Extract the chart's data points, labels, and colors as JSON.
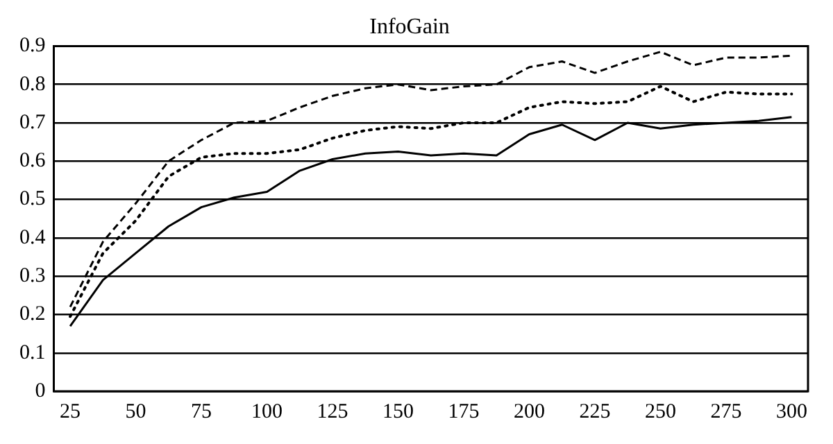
{
  "chart_data": {
    "type": "line",
    "title": "InfoGain",
    "categories": [
      "25",
      null,
      "50",
      null,
      "75",
      null,
      "100",
      null,
      "125",
      null,
      "150",
      null,
      "175",
      null,
      "200",
      null,
      "225",
      null,
      "250",
      null,
      "275",
      null,
      "300"
    ],
    "series": [
      {
        "color": "#000000",
        "line_style": "dashed",
        "values": [
          0.22,
          0.39,
          0.49,
          0.6,
          0.655,
          0.7,
          0.705,
          0.74,
          0.77,
          0.79,
          0.8,
          0.785,
          0.795,
          0.8,
          0.845,
          0.86,
          0.83,
          0.86,
          0.885,
          0.85,
          0.87,
          0.87,
          0.875
        ]
      },
      {
        "color": "#000000",
        "line_style": "dotted",
        "values": [
          0.195,
          0.36,
          0.445,
          0.56,
          0.61,
          0.62,
          0.62,
          0.63,
          0.66,
          0.68,
          0.69,
          0.685,
          0.7,
          0.7,
          0.74,
          0.755,
          0.75,
          0.755,
          0.795,
          0.755,
          0.78,
          0.775,
          0.775
        ]
      },
      {
        "color": "#000000",
        "line_style": "solid",
        "values": [
          0.17,
          0.29,
          0.36,
          0.43,
          0.48,
          0.505,
          0.52,
          0.575,
          0.605,
          0.62,
          0.625,
          0.615,
          0.62,
          0.615,
          0.67,
          0.695,
          0.655,
          0.7,
          0.685,
          0.695,
          0.7,
          0.705,
          0.715
        ]
      }
    ],
    "ylim": [
      0,
      0.9
    ],
    "yticks": [
      0,
      0.1,
      0.2,
      0.3,
      0.4,
      0.5,
      0.6,
      0.7,
      0.8,
      0.9
    ],
    "grid": "y",
    "legend": false,
    "marker": "none"
  }
}
